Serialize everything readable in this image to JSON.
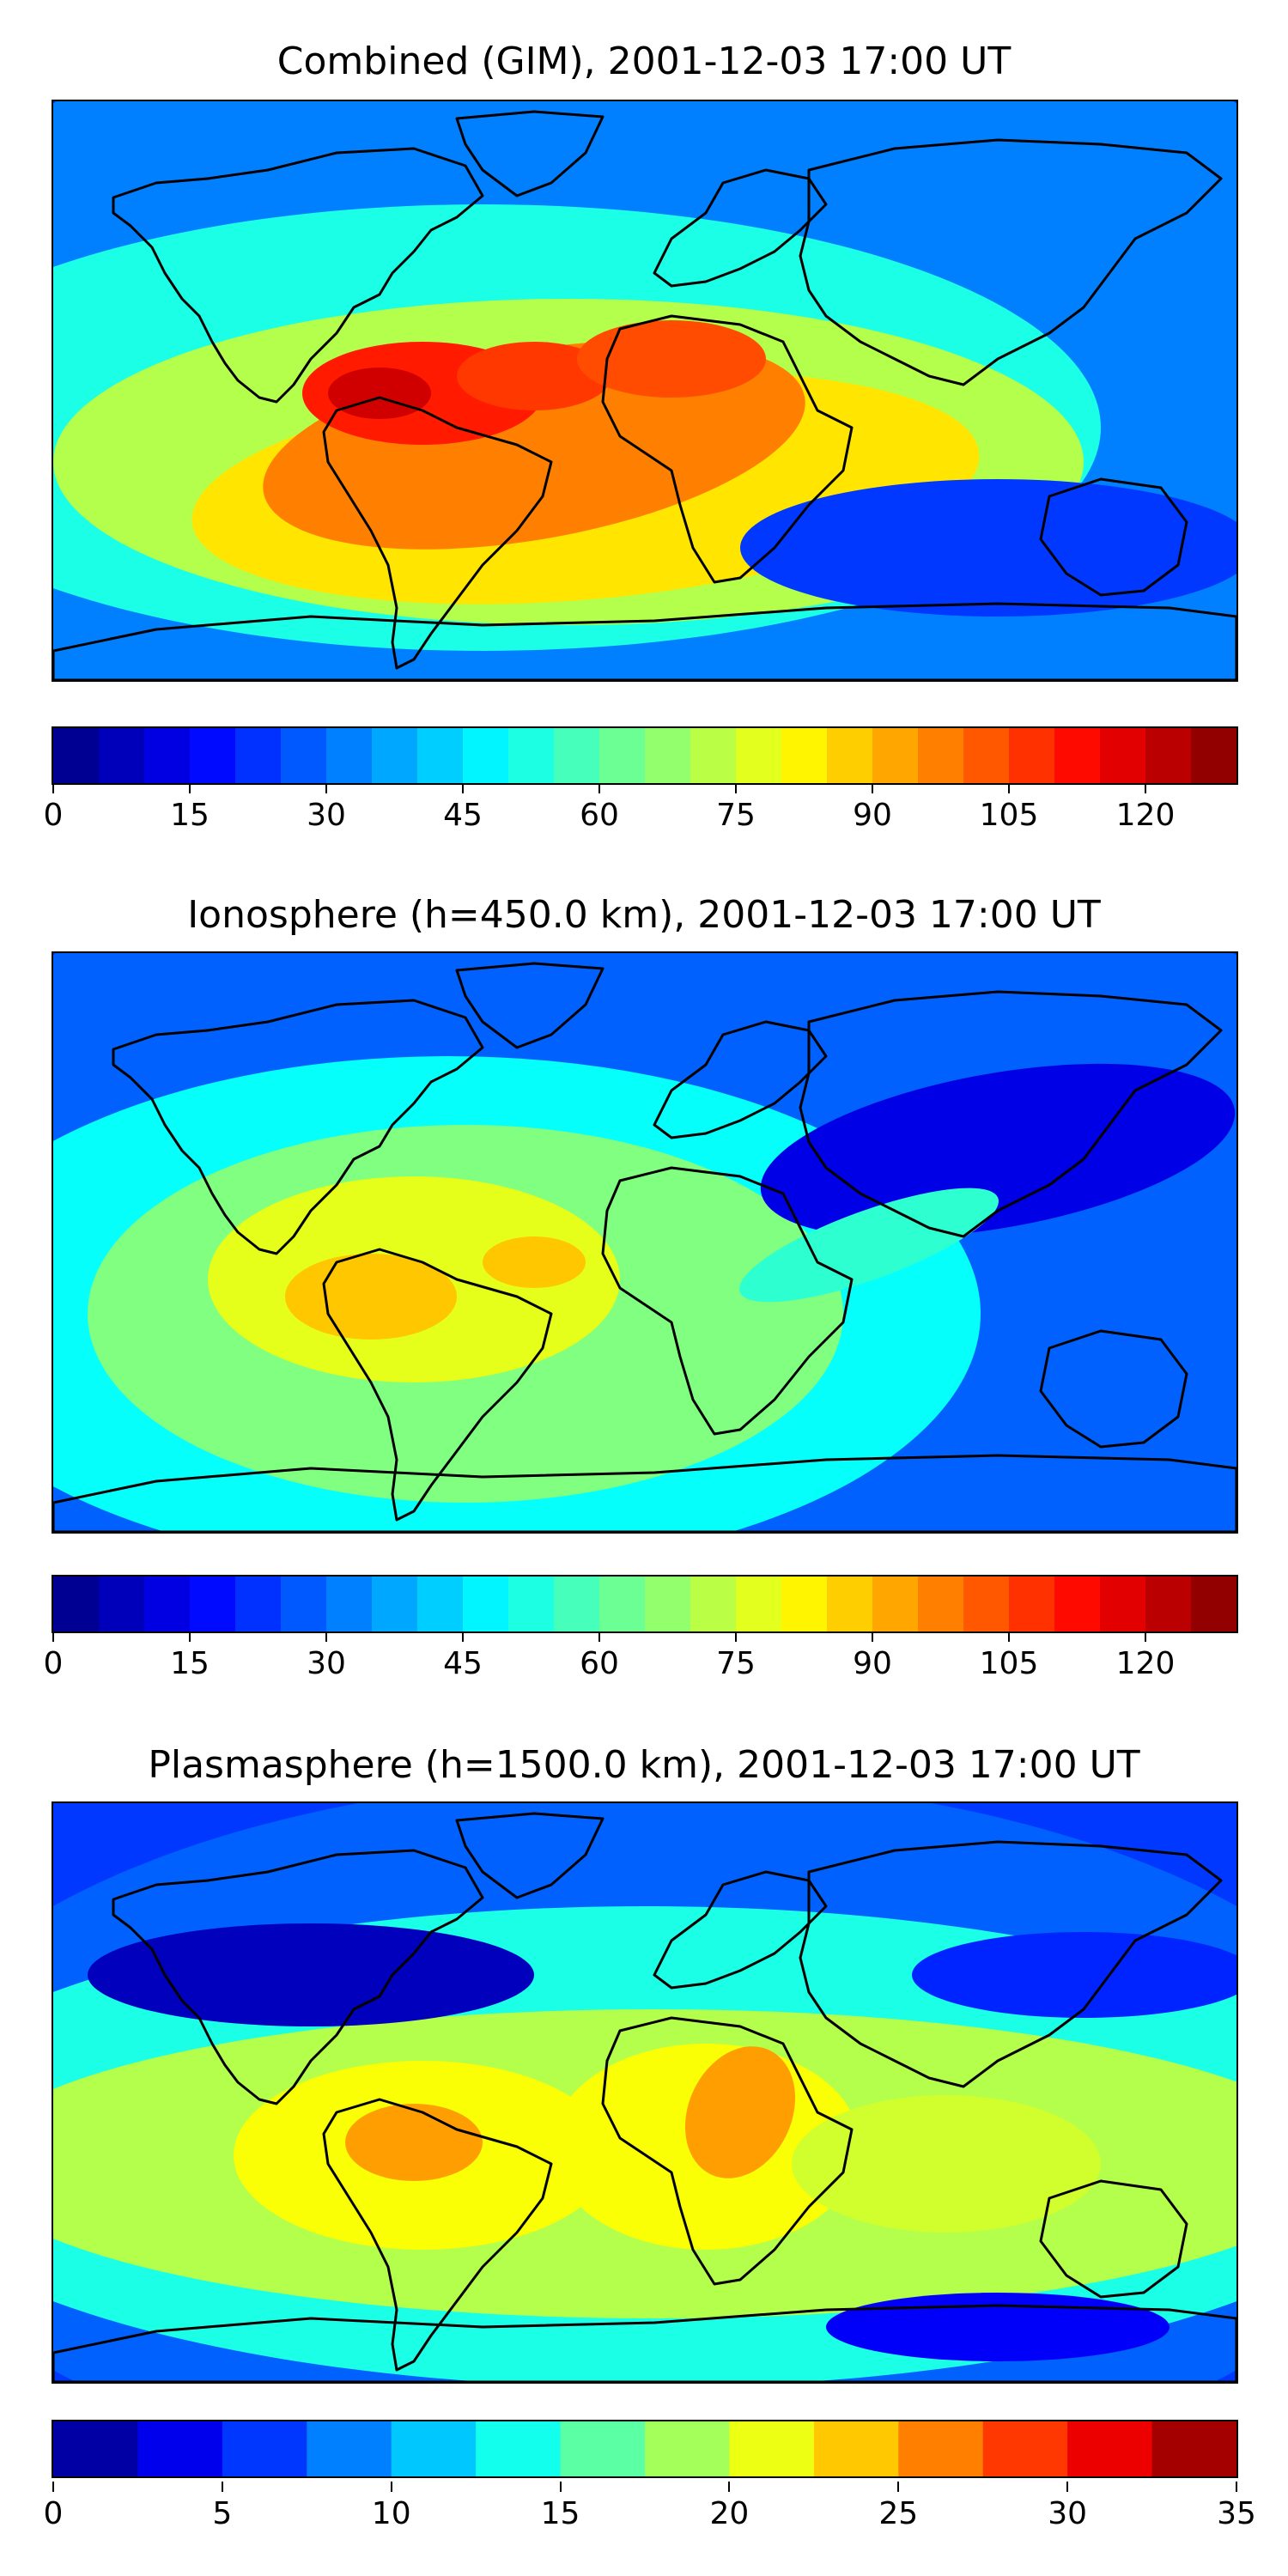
{
  "panels": [
    {
      "title": "Combined (GIM), 2001-12-03 17:00 UT",
      "vmin": 0,
      "vmax": 130,
      "nlevels": 26,
      "ticks": [
        "0",
        "15",
        "30",
        "45",
        "60",
        "75",
        "90",
        "105",
        "120"
      ],
      "tick_values": [
        0,
        15,
        30,
        45,
        60,
        75,
        90,
        105,
        120
      ]
    },
    {
      "title": "Ionosphere  (h=450.0 km), 2001-12-03 17:00 UT",
      "vmin": 0,
      "vmax": 130,
      "nlevels": 26,
      "ticks": [
        "0",
        "15",
        "30",
        "45",
        "60",
        "75",
        "90",
        "105",
        "120"
      ],
      "tick_values": [
        0,
        15,
        30,
        45,
        60,
        75,
        90,
        105,
        120
      ]
    },
    {
      "title": "Plasmasphere (h=1500.0 km), 2001-12-03 17:00 UT",
      "vmin": 0,
      "vmax": 35,
      "nlevels": 14,
      "ticks": [
        "0",
        "5",
        "10",
        "15",
        "20",
        "25",
        "30",
        "35"
      ],
      "tick_values": [
        0,
        5,
        10,
        15,
        20,
        25,
        30,
        35
      ]
    }
  ],
  "colors": {
    "colormap": "jet",
    "coastline": "#000000",
    "background": "#ffffff"
  }
}
